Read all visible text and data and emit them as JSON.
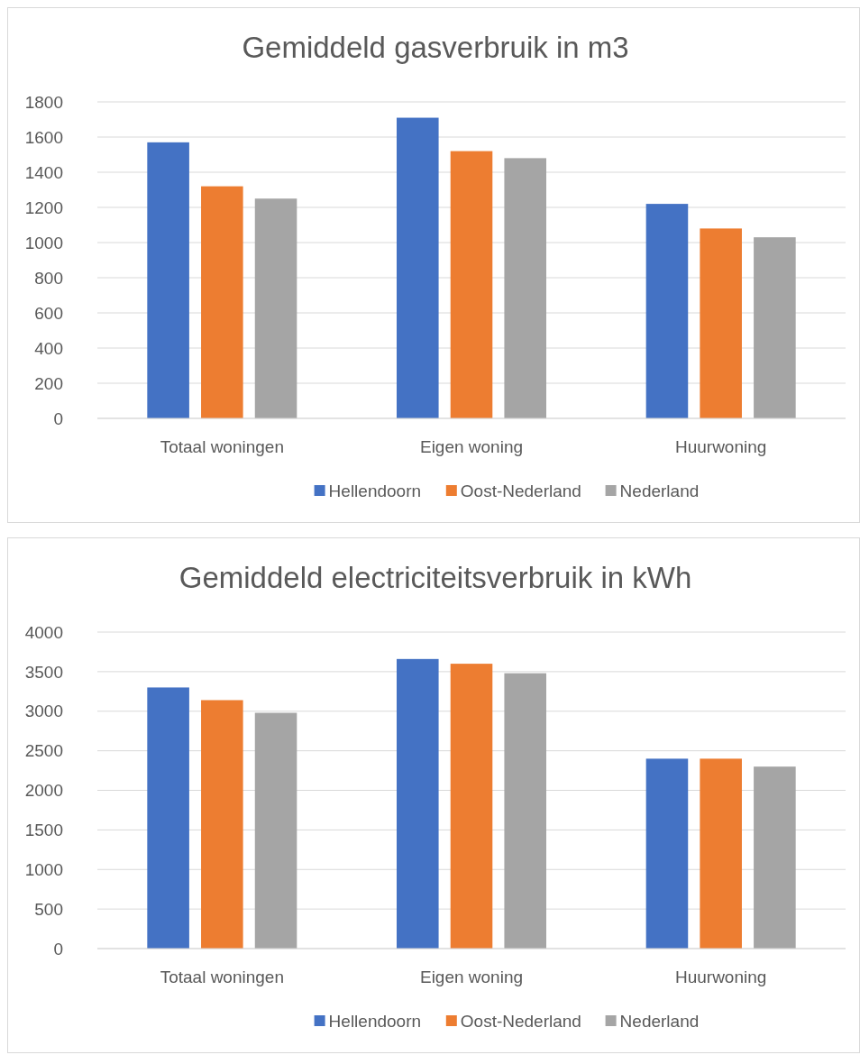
{
  "chart_data": [
    {
      "type": "bar",
      "title": "Gemiddeld gasverbruik in m3",
      "categories": [
        "Totaal woningen",
        "Eigen woning",
        "Huurwoning"
      ],
      "series": [
        {
          "name": "Hellendoorn",
          "color": "#4472c4",
          "values": [
            1570,
            1710,
            1220
          ]
        },
        {
          "name": "Oost-Nederland",
          "color": "#ed7d31",
          "values": [
            1320,
            1520,
            1080
          ]
        },
        {
          "name": "Nederland",
          "color": "#a5a5a5",
          "values": [
            1250,
            1480,
            1030
          ]
        }
      ],
      "ylim": [
        0,
        1800
      ],
      "yticks": [
        0,
        200,
        400,
        600,
        800,
        1000,
        1200,
        1400,
        1600,
        1800
      ],
      "grid": "y",
      "legend": "bottom"
    },
    {
      "type": "bar",
      "title": "Gemiddeld electriciteitsverbruik in kWh",
      "categories": [
        "Totaal woningen",
        "Eigen woning",
        "Huurwoning"
      ],
      "series": [
        {
          "name": "Hellendoorn",
          "color": "#4472c4",
          "values": [
            3300,
            3660,
            2400
          ]
        },
        {
          "name": "Oost-Nederland",
          "color": "#ed7d31",
          "values": [
            3140,
            3600,
            2400
          ]
        },
        {
          "name": "Nederland",
          "color": "#a5a5a5",
          "values": [
            2980,
            3480,
            2300
          ]
        }
      ],
      "ylim": [
        0,
        4000
      ],
      "yticks": [
        0,
        500,
        1000,
        1500,
        2000,
        2500,
        3000,
        3500,
        4000
      ],
      "grid": "y",
      "legend": "bottom"
    }
  ]
}
